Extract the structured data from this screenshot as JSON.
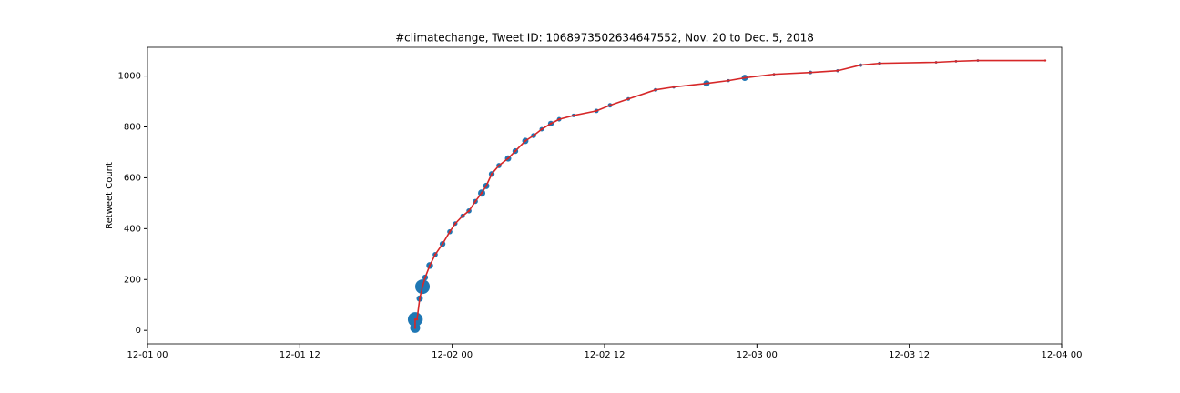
{
  "chart_data": {
    "type": "scatter",
    "title": "#climatechange, Tweet ID: 1068973502634647552, Nov. 20 to Dec. 5, 2018",
    "ylabel": "Retweet Count",
    "x": [
      21.08,
      21.08,
      21.23,
      21.44,
      21.66,
      21.87,
      22.23,
      22.66,
      23.24,
      23.81,
      24.24,
      24.82,
      25.32,
      25.82,
      26.32,
      26.68,
      27.11,
      27.68,
      28.4,
      28.97,
      29.76,
      30.41,
      31.05,
      31.77,
      32.42,
      33.56,
      35.36,
      36.43,
      37.87,
      40.02,
      41.45,
      44.03,
      45.75,
      47.04,
      49.34,
      52.21,
      54.36,
      56.15,
      57.66,
      62.11,
      63.68,
      65.4,
      70.71
    ],
    "values": [
      10,
      43,
      43,
      125,
      172,
      208,
      255,
      298,
      340,
      388,
      420,
      450,
      470,
      507,
      540,
      568,
      615,
      648,
      676,
      705,
      745,
      766,
      791,
      813,
      830,
      845,
      863,
      885,
      910,
      946,
      957,
      971,
      982,
      993,
      1007,
      1014,
      1021,
      1043,
      1050,
      1054,
      1058,
      1061,
      1061
    ],
    "sizes": [
      30,
      64,
      40,
      12,
      64,
      10,
      14,
      8,
      10,
      8,
      6,
      6,
      8,
      8,
      16,
      12,
      10,
      8,
      12,
      10,
      12,
      8,
      6,
      10,
      6,
      4,
      6,
      6,
      4,
      4,
      3,
      12,
      3,
      12,
      2,
      4,
      3,
      4,
      3,
      2,
      2,
      2,
      1
    ],
    "color": "#1f77b4",
    "line_color": "#d62728",
    "xlim": [
      0,
      72
    ],
    "xticks": [
      {
        "value": 0,
        "label": "12-01 00"
      },
      {
        "value": 12,
        "label": "12-01 12"
      },
      {
        "value": 24,
        "label": "12-02 00"
      },
      {
        "value": 36,
        "label": "12-02 12"
      },
      {
        "value": 48,
        "label": "12-03 00"
      },
      {
        "value": 60,
        "label": "12-03 12"
      },
      {
        "value": 72,
        "label": "12-04 00"
      }
    ],
    "ylim": [
      -53,
      1113
    ],
    "yticks": [
      0,
      200,
      400,
      600,
      800,
      1000
    ],
    "grid": false
  }
}
